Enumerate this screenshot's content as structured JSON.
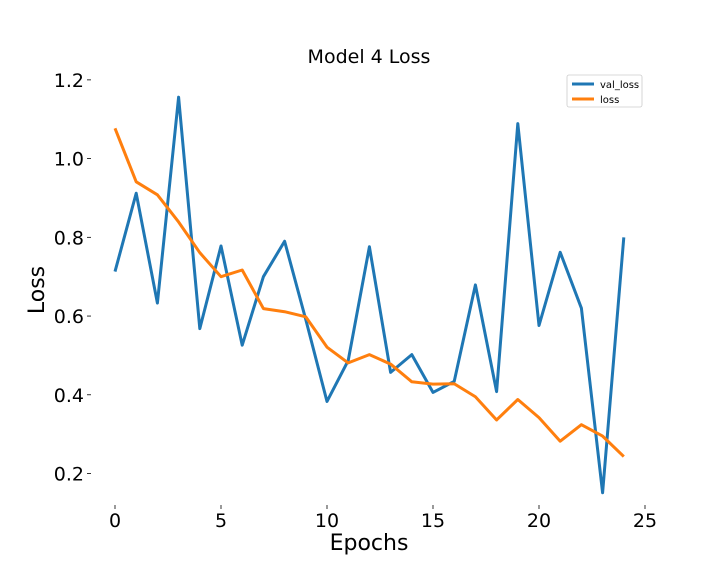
{
  "chart_data": {
    "type": "line",
    "title": "Model 4 Loss",
    "xlabel": "Epochs",
    "ylabel": "Loss",
    "xlim": [
      0,
      25
    ],
    "ylim": [
      0.12,
      1.22
    ],
    "xticks": [
      0,
      5,
      10,
      15,
      20,
      25
    ],
    "yticks": [
      0.2,
      0.4,
      0.6,
      0.8,
      1.0,
      1.2
    ],
    "ytick_labels": [
      "0.2",
      "0.4",
      "0.6",
      "0.8",
      "1.0",
      "1.2"
    ],
    "grid": false,
    "legend_position": "top-right",
    "x": [
      0,
      1,
      2,
      3,
      4,
      5,
      6,
      7,
      8,
      9,
      10,
      11,
      12,
      13,
      14,
      15,
      16,
      17,
      18,
      19,
      20,
      21,
      22,
      23,
      24
    ],
    "series": [
      {
        "name": "val_loss",
        "color": "#1f77b4",
        "values": [
          0.713,
          0.912,
          0.633,
          1.156,
          0.568,
          0.778,
          0.526,
          0.7,
          0.79,
          0.591,
          0.383,
          0.487,
          0.776,
          0.457,
          0.502,
          0.406,
          0.434,
          0.679,
          0.408,
          1.089,
          0.576,
          0.762,
          0.62,
          0.151,
          0.8
        ]
      },
      {
        "name": "loss",
        "color": "#ff7f0e",
        "values": [
          1.077,
          0.941,
          0.908,
          0.839,
          0.761,
          0.7,
          0.717,
          0.619,
          0.611,
          0.598,
          0.521,
          0.481,
          0.502,
          0.478,
          0.433,
          0.427,
          0.428,
          0.395,
          0.336,
          0.388,
          0.342,
          0.282,
          0.324,
          0.295,
          0.243
        ]
      }
    ]
  }
}
